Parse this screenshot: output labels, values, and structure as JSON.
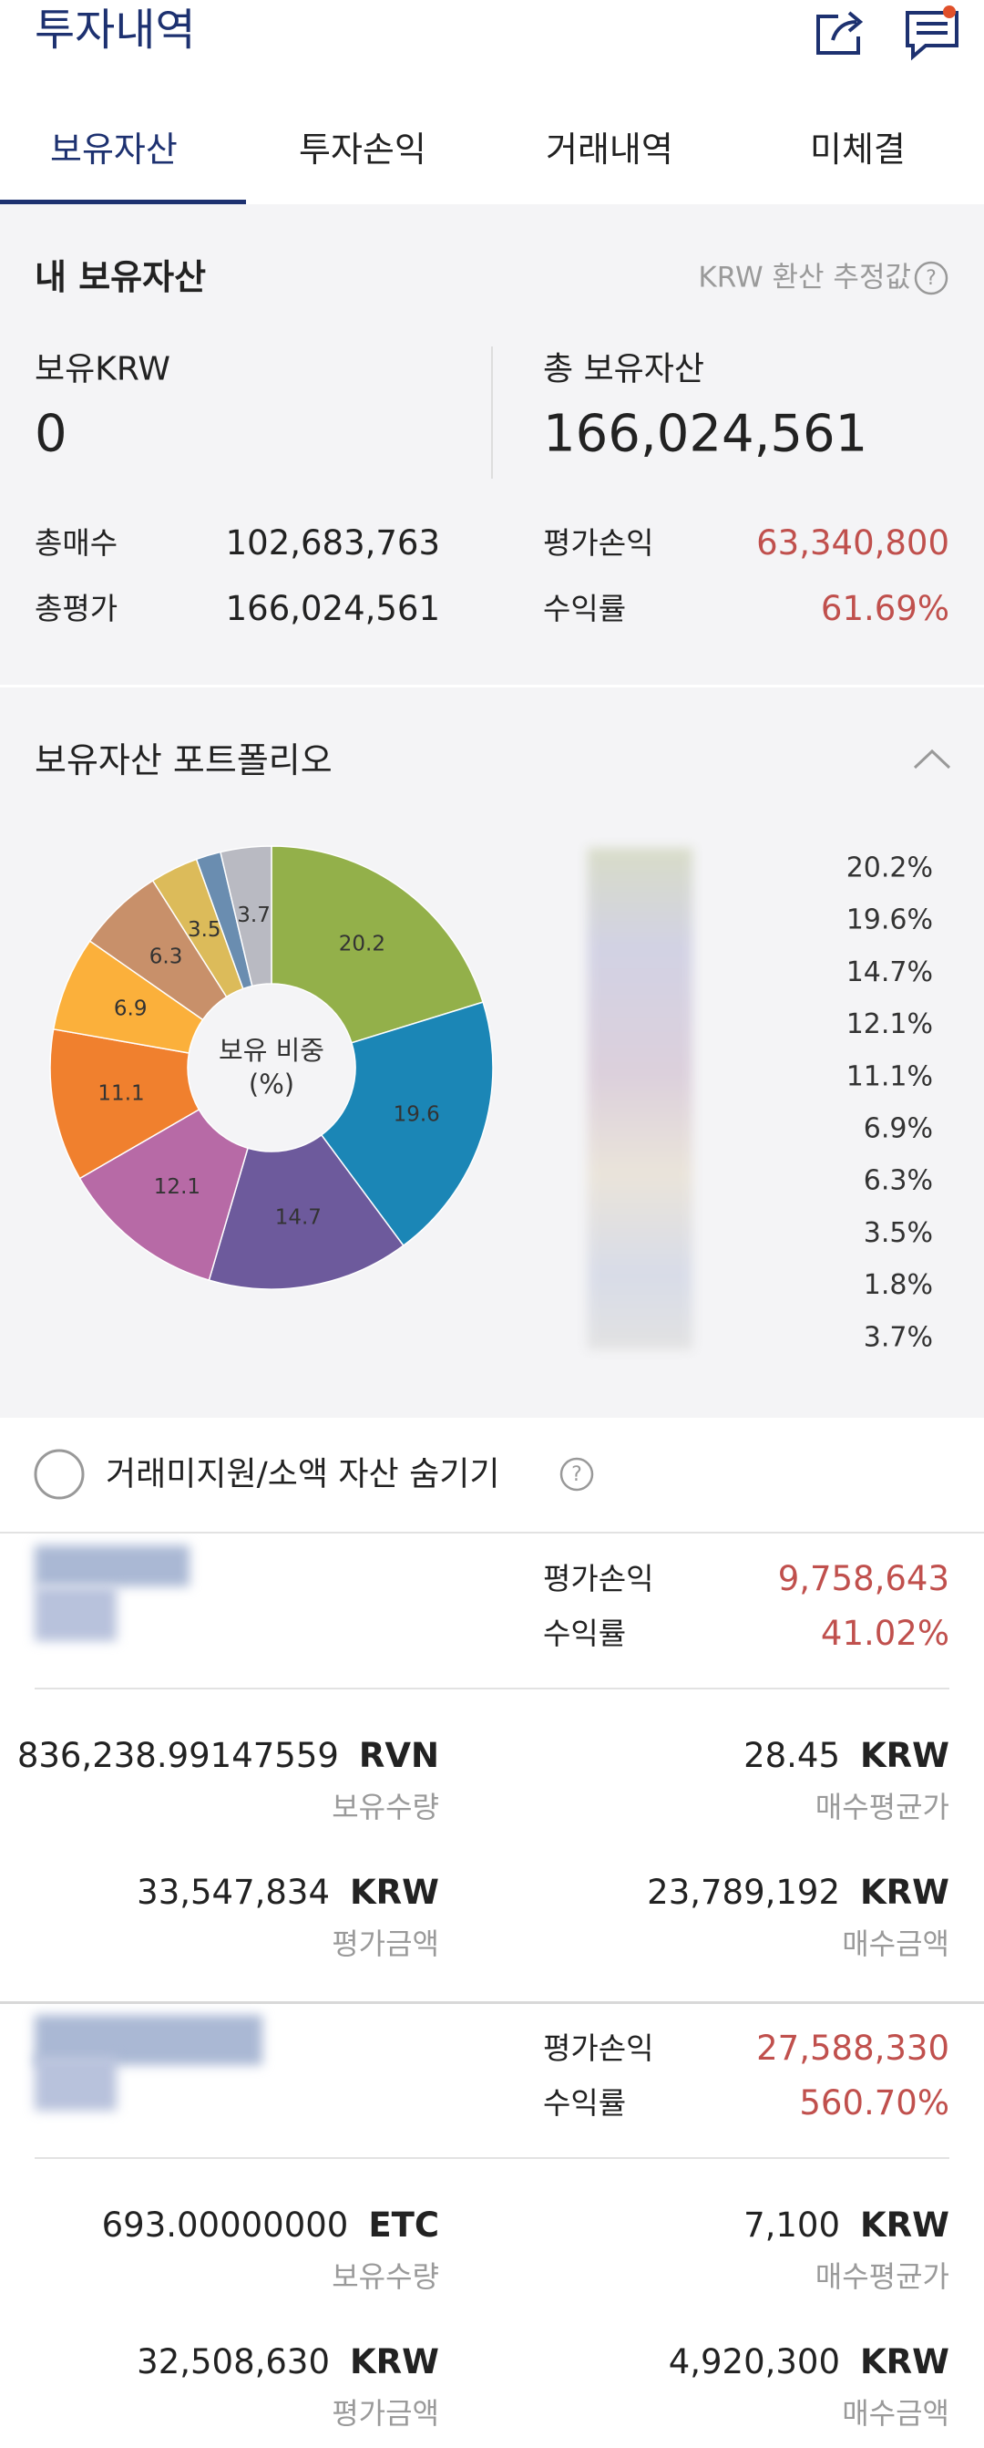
{
  "header": {
    "title": "투자내역"
  },
  "tabs": [
    "보유자산",
    "투자손익",
    "거래내역",
    "미체결"
  ],
  "summary": {
    "title": "내 보유자산",
    "note": "KRW 환산 추정값",
    "krw_label": "보유KRW",
    "krw_value": "0",
    "total_label": "총 보유자산",
    "total_value": "166,024,561",
    "rows": [
      [
        "총매수",
        "102,683,763",
        "평가손익",
        "63,340,800"
      ],
      [
        "총평가",
        "166,024,561",
        "수익률",
        "61.69%"
      ]
    ]
  },
  "chart_data": {
    "type": "pie",
    "title": "보유자산 포트폴리오",
    "center_label": [
      "보유 비중",
      "(%)"
    ],
    "values": [
      20.2,
      19.6,
      14.7,
      12.1,
      11.1,
      6.9,
      6.3,
      3.5,
      1.8,
      3.7
    ],
    "value_labels": [
      "20.2%",
      "19.6%",
      "14.7%",
      "12.1%",
      "11.1%",
      "6.9%",
      "6.3%",
      "3.5%",
      "1.8%",
      "3.7%"
    ],
    "colors": [
      "#93b04a",
      "#1b86b6",
      "#6d5a9c",
      "#b76aa6",
      "#f0802e",
      "#fbb03b",
      "#c8906a",
      "#dcbb5a",
      "#6a8db0",
      "#b9bac2"
    ]
  },
  "hide_option": "거래미지원/소액 자산 숨기기",
  "holdings": [
    {
      "pnl_label": "평가손익",
      "pnl": "9,758,643",
      "rate_label": "수익률",
      "rate": "41.02%",
      "quantity": "836,238.99147559",
      "quantity_unit": "RVN",
      "quantity_label": "보유수량",
      "avg_price": "28.45",
      "avg_price_unit": "KRW",
      "avg_price_label": "매수평균가",
      "valuation": "33,547,834",
      "valuation_unit": "KRW",
      "valuation_label": "평가금액",
      "cost": "23,789,192",
      "cost_unit": "KRW",
      "cost_label": "매수금액"
    },
    {
      "pnl_label": "평가손익",
      "pnl": "27,588,330",
      "rate_label": "수익률",
      "rate": "560.70%",
      "quantity": "693.00000000",
      "quantity_unit": "ETC",
      "quantity_label": "보유수량",
      "avg_price": "7,100",
      "avg_price_unit": "KRW",
      "avg_price_label": "매수평균가",
      "valuation": "32,508,630",
      "valuation_unit": "KRW",
      "valuation_label": "평가금액",
      "cost": "4,920,300",
      "cost_unit": "KRW",
      "cost_label": "매수금액"
    }
  ]
}
